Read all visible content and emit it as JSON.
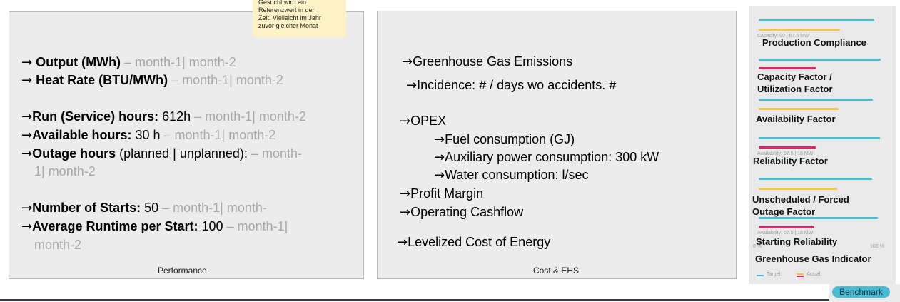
{
  "tooltip": {
    "lines": [
      "Gesucht wird ein",
      "Referenzwert in der",
      "Zeit. Vielleicht im Jahr",
      "zuvor gleicher Monat"
    ]
  },
  "performance": {
    "caption": "Performance",
    "output_label": "Output (MWh)",
    "output_compare": " – month-1| month-2",
    "heat_rate_label": "Heat Rate (BTU/MWh)",
    "heat_rate_compare": " – month-1| month-2",
    "run_label": "Run (Service) hours:",
    "run_value": " 612h",
    "run_compare": " – month-1| month-2",
    "available_label": "Available hours:",
    "available_value": " 30 h",
    "available_compare": " – month-1| month-2",
    "outage_label": "Outage hours",
    "outage_value": " (planned | unplanned):",
    "outage_compare_a": " – month-",
    "outage_compare_b": "1| month-2",
    "starts_label": "Number of Starts:",
    "starts_value": " 50",
    "starts_compare": " – month-1| month-",
    "runtime_label": "Average Runtime per Start:",
    "runtime_value": " 100",
    "runtime_compare_a": " – month-1|",
    "runtime_compare_b": "month-2"
  },
  "cost": {
    "caption": "Cost & EHS",
    "items": {
      "ghg": "Greenhouse  Gas Emissions",
      "incidence": "Incidence: # / days wo accidents. #",
      "opex": "OPEX",
      "fuel": "Fuel consumption (GJ)",
      "aux": "Auxiliary power consumption: 300 kW",
      "water": "Water consumption: l/sec",
      "profit": "Profit Margin",
      "cashflow": "Operating Cashflow",
      "lcoe": "Levelized  Cost of Energy"
    }
  },
  "kpis": {
    "production": "Production Compliance",
    "capacity_a": "Capacity Factor /",
    "capacity_b": "Utilization Factor",
    "availability": "Availability Factor",
    "reliability": "Reliability Factor",
    "unscheduled_a": "Unscheduled / Forced",
    "unscheduled_b": "Outage Factor",
    "starting": "Starting Reliability",
    "ghg": "Greenhouse Gas Indicator",
    "capacity_note": "Capacity:  90 | 67.5 MW",
    "availability_note_1": "Availability:  67.5 | 18 MW",
    "availability_note_2": "Availability:  67.5 | 18 MW",
    "axis_0": "0 %",
    "axis_100": "100 %",
    "legend_target": "Target",
    "legend_actual": "Actual"
  },
  "colors": {
    "target": "#4bbdd2",
    "actual": "#f6c34a",
    "actual_alt": "#e6226b"
  },
  "benchmark": {
    "label": "Benchmark"
  }
}
